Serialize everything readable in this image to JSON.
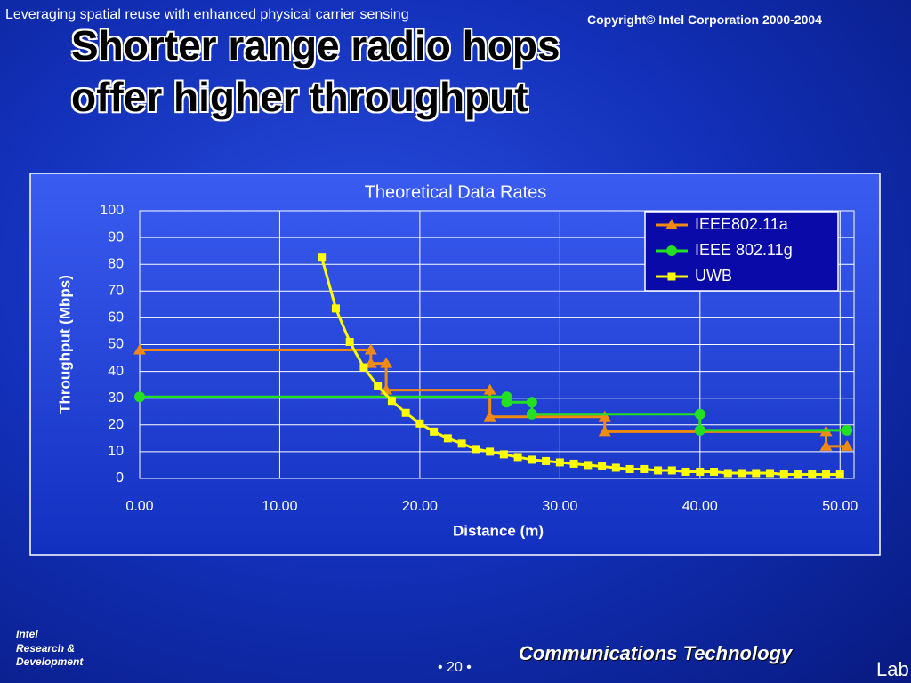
{
  "header": {
    "subtitle": "Leveraging spatial reuse with enhanced physical carrier sensing",
    "copyright": "Copyright© Intel Corporation 2000-2004",
    "title_line1": "Shorter range radio hops",
    "title_line2": "offer higher throughput"
  },
  "footer": {
    "brand1": "Intel",
    "brand2": "Research &",
    "brand3": "Development",
    "page": "• 20 •",
    "group": "Communications Technology",
    "lab": "Lab"
  },
  "chart_data": {
    "type": "line",
    "title": "Theoretical Data Rates",
    "x_label": "Distance (m)",
    "y_label": "Throughput (Mbps)",
    "xlim": [
      0,
      51
    ],
    "ylim": [
      0,
      100
    ],
    "xticks": [
      {
        "value": 0,
        "label": "0.00"
      },
      {
        "value": 10,
        "label": "10.00"
      },
      {
        "value": 20,
        "label": "20.00"
      },
      {
        "value": 30,
        "label": "30.00"
      },
      {
        "value": 40,
        "label": "40.00"
      },
      {
        "value": 50,
        "label": "50.00"
      }
    ],
    "yticks": [
      0,
      10,
      20,
      30,
      40,
      50,
      60,
      70,
      80,
      90,
      100
    ],
    "grid": true,
    "legend": "top-right",
    "series": [
      {
        "name": "IEEE802.11a",
        "color": "#f08a10",
        "marker": "triangle",
        "x": [
          0,
          16.5,
          16.5,
          17.6,
          17.6,
          25,
          25,
          33.2,
          33.2,
          49,
          49,
          50.5
        ],
        "values": [
          48,
          48,
          43,
          43,
          33,
          33,
          23,
          23,
          17.5,
          17.5,
          12,
          12
        ]
      },
      {
        "name": "IEEE 802.11g",
        "color": "#22e022",
        "marker": "circle",
        "x": [
          0,
          26.2,
          26.2,
          28,
          28,
          40,
          40,
          50.5
        ],
        "values": [
          30.5,
          30.5,
          28.5,
          28.5,
          24,
          24,
          18,
          18
        ]
      },
      {
        "name": "UWB",
        "color": "#ffff00",
        "marker": "square",
        "x": [
          13,
          14,
          15,
          16,
          17,
          18,
          19,
          20,
          21,
          22,
          23,
          24,
          25,
          26,
          27,
          28,
          29,
          30,
          31,
          32,
          33,
          34,
          35,
          36,
          37,
          38,
          39,
          40,
          41,
          42,
          43,
          44,
          45,
          46,
          47,
          48,
          49,
          50
        ],
        "values": [
          82.5,
          63.5,
          51,
          41.5,
          34.5,
          29,
          24.5,
          20.5,
          17.5,
          15,
          13,
          11,
          10,
          9,
          8,
          7,
          6.5,
          6,
          5.5,
          5,
          4.5,
          4,
          3.5,
          3.5,
          3,
          3,
          2.5,
          2.5,
          2.5,
          2,
          2,
          2,
          2,
          1.5,
          1.5,
          1.5,
          1.5,
          1.5
        ]
      }
    ]
  }
}
